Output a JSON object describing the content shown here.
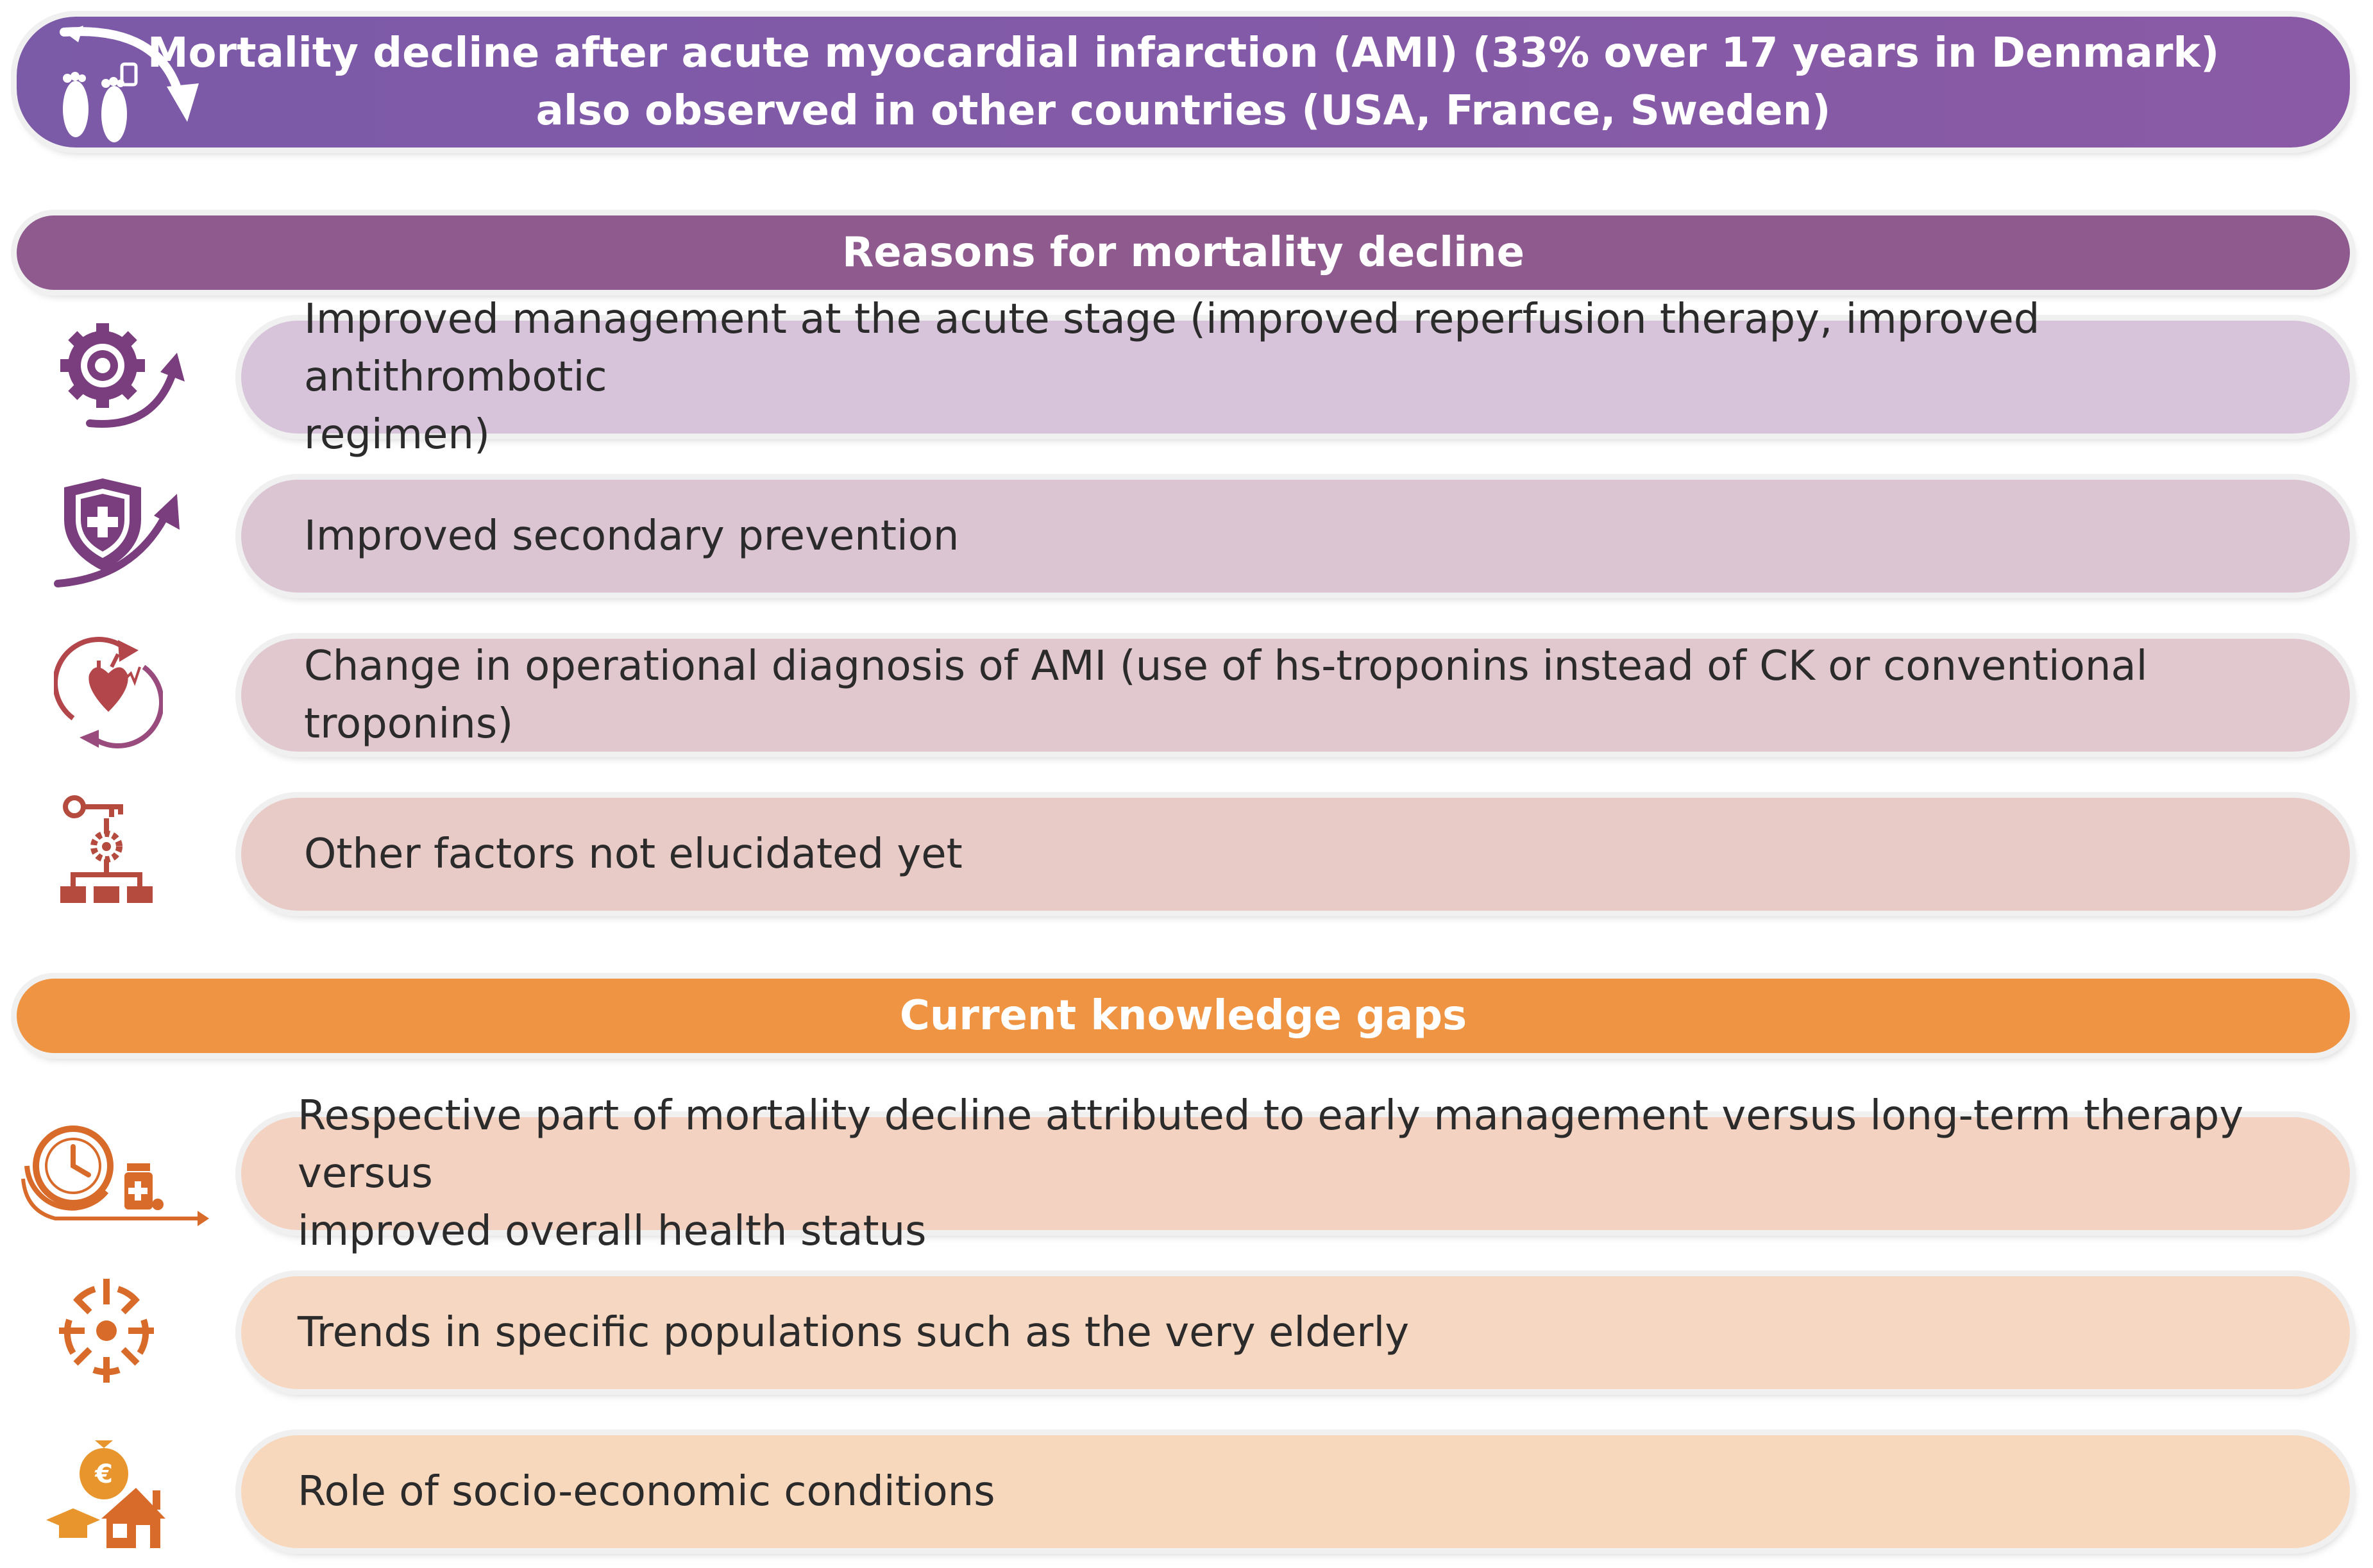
{
  "header": {
    "lines": [
      "Mortality decline after acute myocardial infarction (AMI) (33% over 17 years in Denmark)",
      "also observed in other countries (USA, France, Sweden)"
    ],
    "icon": "footprints-arrow-icon"
  },
  "reasons": {
    "title": "Reasons for mortality decline",
    "items": [
      {
        "icon": "gear-arrow-icon",
        "lines": [
          "Improved management at the acute stage (improved reperfusion therapy, improved antithrombotic",
          "regimen)"
        ]
      },
      {
        "icon": "shield-arrow-icon",
        "lines": [
          "Improved secondary prevention"
        ]
      },
      {
        "icon": "heart-cycle-icon",
        "lines": [
          "Change in operational diagnosis of AMI (use of hs-troponins instead of CK or conventional troponins)"
        ]
      },
      {
        "icon": "key-hierarchy-icon",
        "lines": [
          "Other factors not elucidated yet"
        ]
      }
    ]
  },
  "gaps": {
    "title": "Current knowledge gaps",
    "items": [
      {
        "icon": "clock-medicine-icon",
        "lines": [
          "Respective part of mortality decline attributed to early management versus long-term therapy versus",
          "improved overall health status"
        ]
      },
      {
        "icon": "target-icon",
        "lines": [
          "Trends in specific populations such as the very elderly"
        ]
      },
      {
        "icon": "money-house-education-icon",
        "lines": [
          "Role of socio-economic conditions"
        ]
      }
    ]
  },
  "colors": {
    "header_start": "#7b5aa8",
    "header_end": "#8a5aa6",
    "reasons_title": "#8f5b8f",
    "gaps_title": "#ef9443",
    "reason_items": [
      "#d8c4da",
      "#dcc5d3",
      "#e1c8cf",
      "#e8cac7"
    ],
    "gap_items": [
      "#f3d2c2",
      "#f6d7c1",
      "#f8d8bc"
    ],
    "icon_purple": "#7a3e7e",
    "icon_red": "#b2464a",
    "icon_orange": "#d86a2a"
  }
}
